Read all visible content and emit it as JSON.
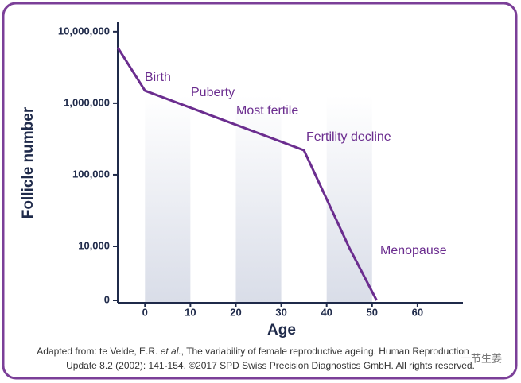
{
  "chart_data": {
    "type": "line",
    "yscale": "log",
    "x_label": "Age",
    "y_label": "Follicle number",
    "x": [
      -6,
      0,
      35,
      45,
      51
    ],
    "series": [
      {
        "name": "Follicle number",
        "color": "#6b2d8f",
        "values": [
          6000000,
          1500000,
          220000,
          9500,
          0
        ]
      }
    ],
    "xlim": [
      -6,
      70
    ],
    "xticks": [
      0,
      10,
      20,
      30,
      40,
      50,
      60
    ],
    "ylim": [
      0,
      15000000
    ],
    "yticks": [
      0,
      {
        "value": 10000,
        "label": "10,000"
      },
      {
        "value": 100000,
        "label": "100,000"
      },
      {
        "value": 1000000,
        "label": "1,000,000"
      },
      {
        "value": 10000000,
        "label": "10,000,000"
      }
    ],
    "annotations": [
      "Birth",
      "Puberty",
      "Most fertile",
      "Fertility decline",
      "Menopause"
    ],
    "caption": [
      [
        "Adapted from: te Velde, E.R. ",
        "et al.",
        ", The variability of female reproductive ageing. Human Reproduction"
      ],
      [
        "Update 8.2 (2002): 141-154. ©2017 SPD Swiss Precision Diagnostics GmbH. All rights reserved."
      ]
    ],
    "watermark": "一节生姜"
  }
}
